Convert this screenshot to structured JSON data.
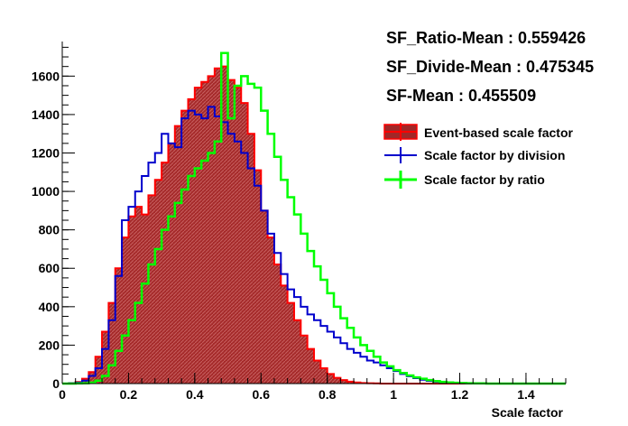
{
  "chart_data": {
    "type": "histogram",
    "xlabel": "Scale factor",
    "ylabel": "",
    "xlim": [
      0,
      1.52
    ],
    "ylim": [
      0,
      1780
    ],
    "xticks": [
      0,
      0.2,
      0.4,
      0.6,
      0.8,
      1,
      1.2,
      1.4
    ],
    "yticks": [
      0,
      200,
      400,
      600,
      800,
      1000,
      1200,
      1400,
      1600
    ],
    "grid": false,
    "legend_position": "right",
    "stats": [
      "SF_Ratio-Mean : 0.559426",
      "SF_Divide-Mean : 0.475345",
      "SF-Mean : 0.455509"
    ],
    "bin_width": 0.02,
    "x": [
      0.01,
      0.03,
      0.05,
      0.07,
      0.09,
      0.11,
      0.13,
      0.15,
      0.17,
      0.19,
      0.21,
      0.23,
      0.25,
      0.27,
      0.29,
      0.31,
      0.33,
      0.35,
      0.37,
      0.39,
      0.41,
      0.43,
      0.45,
      0.47,
      0.49,
      0.51,
      0.53,
      0.55,
      0.57,
      0.59,
      0.61,
      0.63,
      0.65,
      0.67,
      0.69,
      0.71,
      0.73,
      0.75,
      0.77,
      0.79,
      0.81,
      0.83,
      0.85,
      0.87,
      0.89,
      0.91,
      0.93,
      0.95,
      0.97,
      0.99,
      1.01,
      1.03,
      1.05,
      1.07,
      1.09,
      1.11,
      1.13,
      1.15,
      1.17,
      1.19,
      1.21,
      1.23,
      1.25,
      1.27,
      1.29,
      1.31,
      1.33,
      1.35,
      1.37,
      1.39,
      1.41,
      1.43,
      1.45,
      1.47,
      1.49,
      1.51
    ],
    "series": [
      {
        "name": "Event-based scale factor",
        "color": "#ff0000",
        "fill": "#a02828",
        "values": [
          0,
          2,
          8,
          25,
          60,
          140,
          270,
          420,
          600,
          760,
          870,
          920,
          880,
          980,
          1060,
          1150,
          1250,
          1340,
          1420,
          1480,
          1540,
          1570,
          1600,
          1640,
          1650,
          1580,
          1540,
          1460,
          1300,
          1110,
          900,
          760,
          620,
          510,
          420,
          330,
          250,
          180,
          120,
          80,
          50,
          30,
          18,
          10,
          6,
          3,
          2,
          1,
          0,
          0,
          0,
          0,
          0,
          0,
          0,
          0,
          0,
          0,
          0,
          0,
          0,
          0,
          0,
          0,
          0,
          0,
          0,
          0,
          0,
          0,
          0,
          0,
          0,
          0,
          0,
          0
        ]
      },
      {
        "name": "Scale factor by division",
        "color": "#0000cc",
        "fill": "",
        "values": [
          0,
          2,
          5,
          15,
          40,
          80,
          180,
          330,
          560,
          850,
          920,
          1000,
          1080,
          1150,
          1200,
          1300,
          1250,
          1230,
          1380,
          1420,
          1400,
          1380,
          1440,
          1390,
          1360,
          1300,
          1260,
          1200,
          1120,
          1030,
          900,
          780,
          680,
          570,
          490,
          450,
          400,
          360,
          330,
          300,
          270,
          240,
          210,
          180,
          160,
          140,
          120,
          110,
          95,
          80,
          65,
          50,
          38,
          28,
          20,
          14,
          10,
          7,
          5,
          3,
          2,
          1,
          0,
          0,
          0,
          0,
          0,
          0,
          0,
          0,
          0,
          0,
          0,
          0,
          0,
          0
        ]
      },
      {
        "name": "Scale factor by ratio",
        "color": "#00ff00",
        "fill": "",
        "values": [
          0,
          0,
          1,
          2,
          5,
          15,
          40,
          95,
          170,
          250,
          330,
          420,
          520,
          620,
          700,
          800,
          870,
          940,
          1010,
          1080,
          1120,
          1160,
          1200,
          1260,
          1720,
          1380,
          1550,
          1600,
          1560,
          1540,
          1420,
          1300,
          1180,
          1060,
          970,
          880,
          780,
          690,
          610,
          540,
          470,
          400,
          340,
          290,
          240,
          200,
          170,
          140,
          110,
          90,
          70,
          55,
          42,
          32,
          25,
          18,
          13,
          9,
          6,
          4,
          3,
          2,
          1,
          1,
          0,
          0,
          0,
          0,
          0,
          0,
          0,
          0,
          0,
          0,
          0,
          0
        ]
      }
    ]
  }
}
